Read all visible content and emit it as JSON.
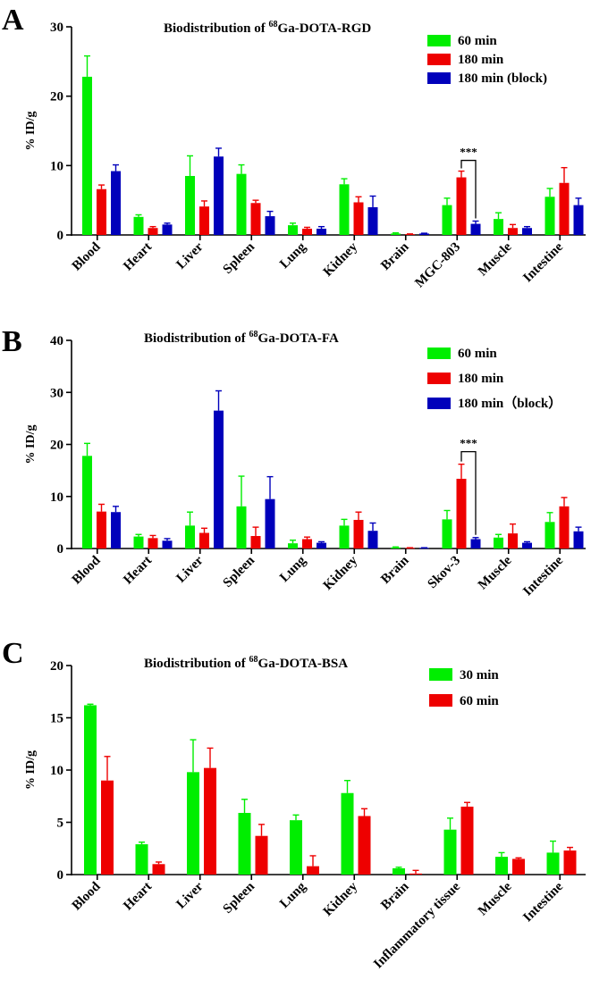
{
  "chart_data": [
    {
      "type": "bar",
      "panel": "A",
      "title_prefix": "Biodistribution of ",
      "title_sup": "68",
      "title_suffix": "Ga-DOTA-RGD",
      "ylabel": "% ID/g",
      "ylim": [
        0,
        30
      ],
      "yticks": [
        0,
        10,
        20,
        30
      ],
      "categories": [
        "Blood",
        "Heart",
        "Liver",
        "Spleen",
        "Lung",
        "Kidney",
        "Brain",
        "MGC-803",
        "Muscle",
        "Intestine"
      ],
      "series": [
        {
          "name": "60 min",
          "color": "#00ee00",
          "values": [
            22.8,
            2.6,
            8.5,
            8.8,
            1.4,
            7.3,
            0.2,
            4.3,
            2.3,
            5.5
          ],
          "errors": [
            3.0,
            0.3,
            2.9,
            1.3,
            0.3,
            0.8,
            0.1,
            1.0,
            0.9,
            1.2
          ]
        },
        {
          "name": "180 min",
          "color": "#ee0000",
          "values": [
            6.6,
            1.0,
            4.1,
            4.6,
            0.9,
            4.7,
            0.1,
            8.3,
            1.0,
            7.5
          ],
          "errors": [
            0.6,
            0.2,
            0.8,
            0.4,
            0.2,
            0.8,
            0.05,
            0.9,
            0.5,
            2.2
          ]
        },
        {
          "name": "180 min (block)",
          "color": "#0000bb",
          "values": [
            9.2,
            1.5,
            11.3,
            2.7,
            0.9,
            4.0,
            0.2,
            1.6,
            1.0,
            4.3
          ],
          "errors": [
            0.9,
            0.2,
            1.2,
            0.7,
            0.3,
            1.6,
            0.05,
            0.4,
            0.2,
            1.0
          ]
        }
      ],
      "significance": {
        "category": "MGC-803",
        "between": [
          "180 min",
          "180 min (block)"
        ],
        "label": "***"
      }
    },
    {
      "type": "bar",
      "panel": "B",
      "title_prefix": "Biodistribution of ",
      "title_sup": "68",
      "title_suffix": "Ga-DOTA-FA",
      "ylabel": "% ID/g",
      "ylim": [
        0,
        40
      ],
      "yticks": [
        0,
        10,
        20,
        30,
        40
      ],
      "categories": [
        "Blood",
        "Heart",
        "Liver",
        "Spleen",
        "Lung",
        "Kidney",
        "Brain",
        "Skov-3",
        "Muscle",
        "Intestine"
      ],
      "series": [
        {
          "name": "60 min",
          "color": "#00ee00",
          "values": [
            17.8,
            2.3,
            4.4,
            8.1,
            1.0,
            4.4,
            0.2,
            5.6,
            2.1,
            5.1
          ],
          "errors": [
            2.4,
            0.4,
            2.6,
            5.8,
            0.6,
            1.2,
            0.1,
            1.7,
            0.6,
            1.8
          ]
        },
        {
          "name": "180 min",
          "color": "#ee0000",
          "values": [
            7.1,
            2.0,
            3.0,
            2.4,
            1.8,
            5.5,
            0.1,
            13.4,
            2.9,
            8.1
          ],
          "errors": [
            1.4,
            0.5,
            0.9,
            1.7,
            0.4,
            1.5,
            0.05,
            2.8,
            1.8,
            1.7
          ]
        },
        {
          "name": "180 min（block）",
          "color": "#0000bb",
          "values": [
            7.0,
            1.5,
            26.5,
            9.5,
            1.1,
            3.4,
            0.1,
            1.8,
            1.1,
            3.3
          ],
          "errors": [
            1.1,
            0.4,
            3.8,
            4.3,
            0.2,
            1.5,
            0.05,
            0.3,
            0.2,
            0.8
          ]
        }
      ],
      "significance": {
        "category": "Skov-3",
        "between": [
          "180 min",
          "180 min（block）"
        ],
        "label": "***"
      }
    },
    {
      "type": "bar",
      "panel": "C",
      "title_prefix": "Biodistribution of ",
      "title_sup": "68",
      "title_suffix": "Ga-DOTA-BSA",
      "ylabel": "% ID/g",
      "ylim": [
        0,
        20
      ],
      "yticks": [
        0,
        5,
        10,
        15,
        20
      ],
      "categories": [
        "Blood",
        "Heart",
        "Liver",
        "Spleen",
        "Lung",
        "Kidney",
        "Brain",
        "Inflammatory tissue",
        "Muscle",
        "Intestine"
      ],
      "series": [
        {
          "name": "30 min",
          "color": "#00ee00",
          "values": [
            16.2,
            2.9,
            9.8,
            5.9,
            5.2,
            7.8,
            0.6,
            4.3,
            1.7,
            2.1
          ],
          "errors": [
            0.1,
            0.2,
            3.1,
            1.3,
            0.5,
            1.2,
            0.1,
            1.1,
            0.4,
            1.1
          ]
        },
        {
          "name": "60 min",
          "color": "#ee0000",
          "values": [
            9.0,
            1.0,
            10.2,
            3.7,
            0.8,
            5.6,
            0.1,
            6.5,
            1.5,
            2.3
          ],
          "errors": [
            2.3,
            0.2,
            1.9,
            1.1,
            1.0,
            0.7,
            0.3,
            0.4,
            0.1,
            0.3
          ]
        }
      ]
    }
  ]
}
